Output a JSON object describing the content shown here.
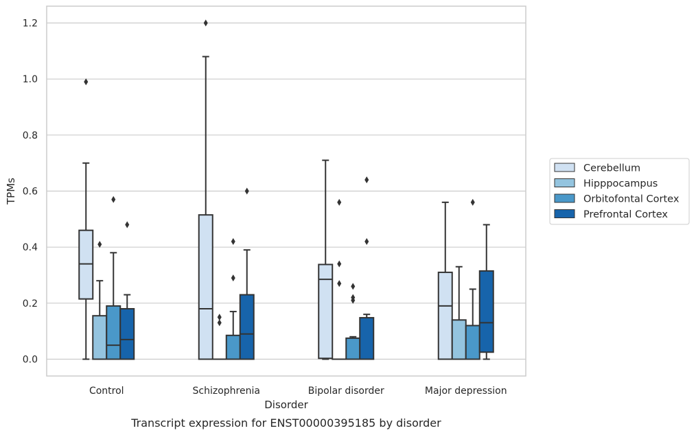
{
  "chart_data": {
    "type": "box",
    "xlabel": "Disorder",
    "ylabel": "TPMs",
    "caption": "Transcript expression for ENST00000395185 by disorder",
    "ylim": [
      -0.06,
      1.26
    ],
    "yticks": [
      0.0,
      0.2,
      0.4,
      0.6,
      0.8,
      1.0,
      1.2
    ],
    "ytick_labels": [
      "0.0",
      "0.2",
      "0.4",
      "0.6",
      "0.8",
      "1.0",
      "1.2"
    ],
    "grid": "horizontal",
    "legend_position": "right",
    "categories": [
      "Control",
      "Schizophrenia",
      "Bipolar disorder",
      "Major depression"
    ],
    "series": [
      {
        "name": "Cerebellum",
        "color": "#d0e1f2",
        "boxes": [
          {
            "whislo": 0.0,
            "q1": 0.215,
            "med": 0.34,
            "q3": 0.46,
            "whishi": 0.7,
            "fliers": [
              0.99
            ]
          },
          {
            "whislo": 0.0,
            "q1": 0.0,
            "med": 0.18,
            "q3": 0.515,
            "whishi": 1.08,
            "fliers": [
              1.2
            ]
          },
          {
            "whislo": 0.0,
            "q1": 0.003,
            "med": 0.285,
            "q3": 0.338,
            "whishi": 0.71,
            "fliers": []
          },
          {
            "whislo": 0.0,
            "q1": 0.0,
            "med": 0.19,
            "q3": 0.31,
            "whishi": 0.56,
            "fliers": []
          }
        ]
      },
      {
        "name": "Hipppocampus",
        "color": "#94c4df",
        "boxes": [
          {
            "whislo": 0.0,
            "q1": 0.0,
            "med": 0.0,
            "q3": 0.155,
            "whishi": 0.28,
            "fliers": [
              0.41
            ]
          },
          {
            "whislo": 0.0,
            "q1": 0.0,
            "med": 0.0,
            "q3": 0.0,
            "whishi": 0.0,
            "fliers": [
              0.13,
              0.15
            ]
          },
          {
            "whislo": 0.0,
            "q1": 0.0,
            "med": 0.0,
            "q3": 0.0,
            "whishi": 0.0,
            "fliers": [
              0.27,
              0.34,
              0.56
            ]
          },
          {
            "whislo": 0.0,
            "q1": 0.0,
            "med": 0.0,
            "q3": 0.14,
            "whishi": 0.33,
            "fliers": []
          }
        ]
      },
      {
        "name": "Orbitofontal Cortex",
        "color": "#4a98c9",
        "boxes": [
          {
            "whislo": 0.0,
            "q1": 0.0,
            "med": 0.05,
            "q3": 0.19,
            "whishi": 0.38,
            "fliers": [
              0.57
            ]
          },
          {
            "whislo": 0.0,
            "q1": 0.0,
            "med": 0.0,
            "q3": 0.085,
            "whishi": 0.17,
            "fliers": [
              0.29,
              0.42
            ]
          },
          {
            "whislo": 0.0,
            "q1": 0.0,
            "med": 0.0,
            "q3": 0.075,
            "whishi": 0.08,
            "fliers": [
              0.21,
              0.22,
              0.26
            ]
          },
          {
            "whislo": 0.0,
            "q1": 0.0,
            "med": 0.0,
            "q3": 0.12,
            "whishi": 0.25,
            "fliers": [
              0.56
            ]
          }
        ]
      },
      {
        "name": "Prefrontal Cortex",
        "color": "#1764ab",
        "boxes": [
          {
            "whislo": 0.0,
            "q1": 0.0,
            "med": 0.07,
            "q3": 0.18,
            "whishi": 0.23,
            "fliers": [
              0.48
            ]
          },
          {
            "whislo": 0.0,
            "q1": 0.0,
            "med": 0.09,
            "q3": 0.23,
            "whishi": 0.39,
            "fliers": [
              0.6
            ]
          },
          {
            "whislo": 0.0,
            "q1": 0.0,
            "med": 0.0,
            "q3": 0.148,
            "whishi": 0.16,
            "fliers": [
              0.42,
              0.64
            ]
          },
          {
            "whislo": 0.0,
            "q1": 0.025,
            "med": 0.13,
            "q3": 0.315,
            "whishi": 0.48,
            "fliers": []
          }
        ]
      }
    ]
  }
}
